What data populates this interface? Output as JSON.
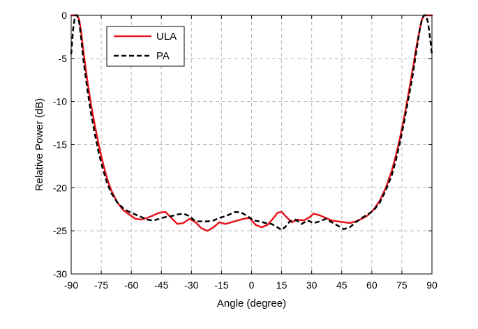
{
  "chart_data": {
    "type": "line",
    "title": "",
    "xlabel": "Angle (degree)",
    "ylabel": "Relative Power (dB)",
    "xlim": [
      -90,
      90
    ],
    "ylim": [
      -30,
      0
    ],
    "xticks": [
      -90,
      -75,
      -60,
      -45,
      -30,
      -15,
      0,
      15,
      30,
      45,
      60,
      75,
      90
    ],
    "yticks": [
      0,
      -5,
      -10,
      -15,
      -20,
      -25,
      -30
    ],
    "grid": true,
    "legend": "top-left",
    "series": [
      {
        "name": "ULA",
        "color": "#e8141c",
        "dash": "solid",
        "x": [
          -90,
          -88,
          -87,
          -86,
          -85,
          -84,
          -82,
          -80,
          -78,
          -76,
          -74,
          -72,
          -70,
          -67,
          -64,
          -61,
          -58,
          -55,
          -52,
          -49,
          -46,
          -43,
          -40,
          -37,
          -34,
          -31,
          -28,
          -25,
          -22,
          -19,
          -16,
          -13,
          -10,
          -7,
          -4,
          -1,
          2,
          5,
          8,
          11,
          13,
          15,
          17,
          20,
          23,
          26,
          29,
          31,
          34,
          37,
          40,
          43,
          46,
          49,
          52,
          55,
          58,
          61,
          64,
          67,
          70,
          72,
          74,
          76,
          78,
          80,
          82,
          84,
          85,
          86,
          87,
          88,
          90
        ],
        "y": [
          0,
          0,
          0,
          -0.5,
          -2,
          -4,
          -7.5,
          -10.5,
          -13,
          -15.3,
          -17.3,
          -19,
          -20.3,
          -21.7,
          -22.6,
          -23.1,
          -23.6,
          -23.7,
          -23.5,
          -23.2,
          -22.9,
          -22.8,
          -23.5,
          -24.2,
          -24.1,
          -23.6,
          -24.0,
          -24.7,
          -25.0,
          -24.6,
          -24.0,
          -24.2,
          -24.0,
          -23.8,
          -23.6,
          -23.5,
          -24.3,
          -24.6,
          -24.3,
          -23.5,
          -22.9,
          -22.8,
          -23.3,
          -24.0,
          -23.7,
          -23.8,
          -23.4,
          -23.0,
          -23.2,
          -23.5,
          -23.8,
          -23.9,
          -24.0,
          -24.1,
          -23.9,
          -23.6,
          -23.2,
          -22.5,
          -21.5,
          -20.0,
          -18.0,
          -16.3,
          -14.3,
          -12.0,
          -9.5,
          -6.8,
          -4.0,
          -1.5,
          -0.5,
          0,
          0,
          0,
          0
        ]
      },
      {
        "name": "PA",
        "color": "#000000",
        "dash": "dashed",
        "x": [
          -90,
          -89,
          -88,
          -87,
          -86,
          -85,
          -84,
          -82,
          -80,
          -78,
          -76,
          -74,
          -72,
          -70,
          -67,
          -64,
          -61,
          -58,
          -55,
          -52,
          -49,
          -46,
          -43,
          -40,
          -37,
          -34,
          -31,
          -28,
          -25,
          -22,
          -19,
          -16,
          -13,
          -10,
          -8,
          -5,
          -2,
          1,
          4,
          7,
          10,
          13,
          15,
          17,
          19,
          22,
          25,
          28,
          31,
          34,
          37,
          40,
          43,
          46,
          49,
          52,
          55,
          58,
          61,
          64,
          67,
          70,
          72,
          74,
          76,
          78,
          80,
          82,
          84,
          85,
          86,
          87,
          88,
          89,
          90
        ],
        "y": [
          -4.5,
          -1.5,
          0,
          0,
          -0.8,
          -2.7,
          -5,
          -8.5,
          -11.5,
          -14,
          -16.2,
          -18,
          -19.5,
          -20.6,
          -21.7,
          -22.4,
          -22.8,
          -23.1,
          -23.4,
          -23.7,
          -23.8,
          -23.6,
          -23.4,
          -23.3,
          -23.1,
          -23.0,
          -23.3,
          -23.9,
          -23.9,
          -23.9,
          -23.8,
          -23.5,
          -23.3,
          -23.0,
          -22.8,
          -22.9,
          -23.3,
          -23.8,
          -23.9,
          -24.1,
          -24.2,
          -24.6,
          -24.9,
          -24.5,
          -23.9,
          -23.7,
          -24.2,
          -23.8,
          -24.1,
          -23.9,
          -23.6,
          -24.0,
          -24.4,
          -24.8,
          -24.6,
          -24.0,
          -23.5,
          -23.1,
          -22.6,
          -21.7,
          -20.3,
          -18.5,
          -16.8,
          -14.8,
          -12.5,
          -10.0,
          -7.5,
          -4.5,
          -1.5,
          -0.5,
          0,
          0,
          -0.8,
          -2.5,
          -4.5
        ]
      }
    ]
  }
}
